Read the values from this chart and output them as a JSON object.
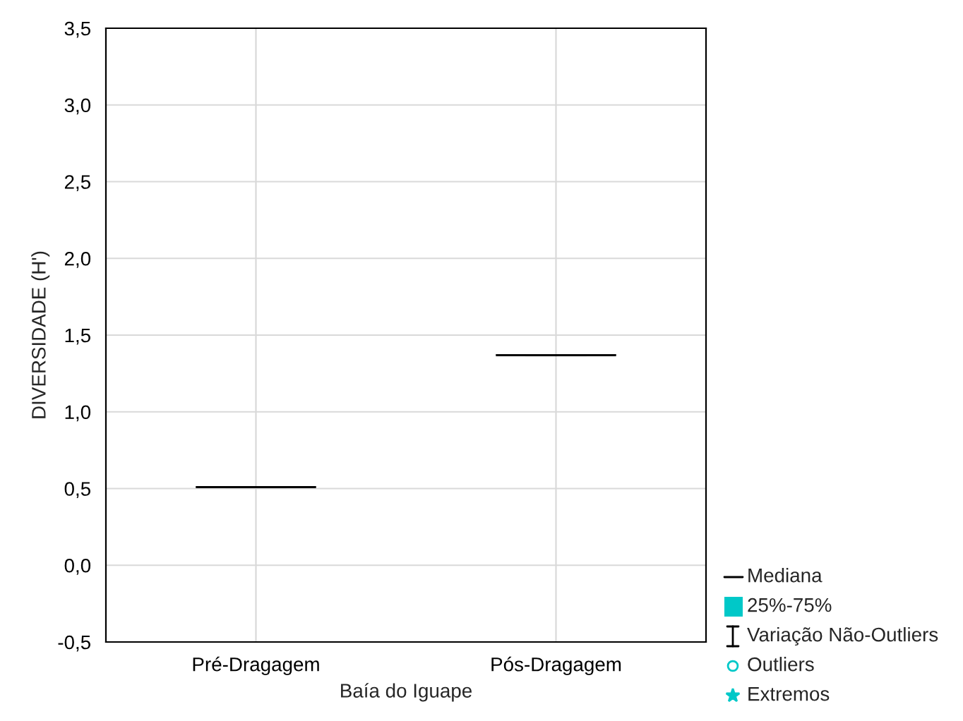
{
  "chart_data": {
    "type": "box",
    "xlabel": "Baía do Iguape",
    "ylabel": "DIVERSIDADE (H')",
    "categories": [
      "Pré-Dragagem",
      "Pós-Dragagem"
    ],
    "boxes": [
      {
        "low": 0.51,
        "q1": 0.51,
        "median": 0.51,
        "q3": 0.51,
        "high": 0.51
      },
      {
        "low": 1.37,
        "q1": 1.37,
        "median": 1.37,
        "q3": 1.37,
        "high": 1.37
      }
    ],
    "ylim": [
      -0.5,
      3.5
    ],
    "yticks": [
      {
        "value": -0.5,
        "label": "-0,5"
      },
      {
        "value": 0,
        "label": "0,0"
      },
      {
        "value": 0.5,
        "label": "0,5"
      },
      {
        "value": 1,
        "label": "1,0"
      },
      {
        "value": 1.5,
        "label": "1,5"
      },
      {
        "value": 2,
        "label": "2,0"
      },
      {
        "value": 2.5,
        "label": "2,5"
      },
      {
        "value": 3,
        "label": "3,0"
      },
      {
        "value": 3.5,
        "label": "3,5"
      }
    ],
    "grid": true,
    "annotations": [
      "Mediana",
      "25%-75%",
      "Variação Não-Outliers",
      "Outliers",
      "Extremos"
    ]
  }
}
